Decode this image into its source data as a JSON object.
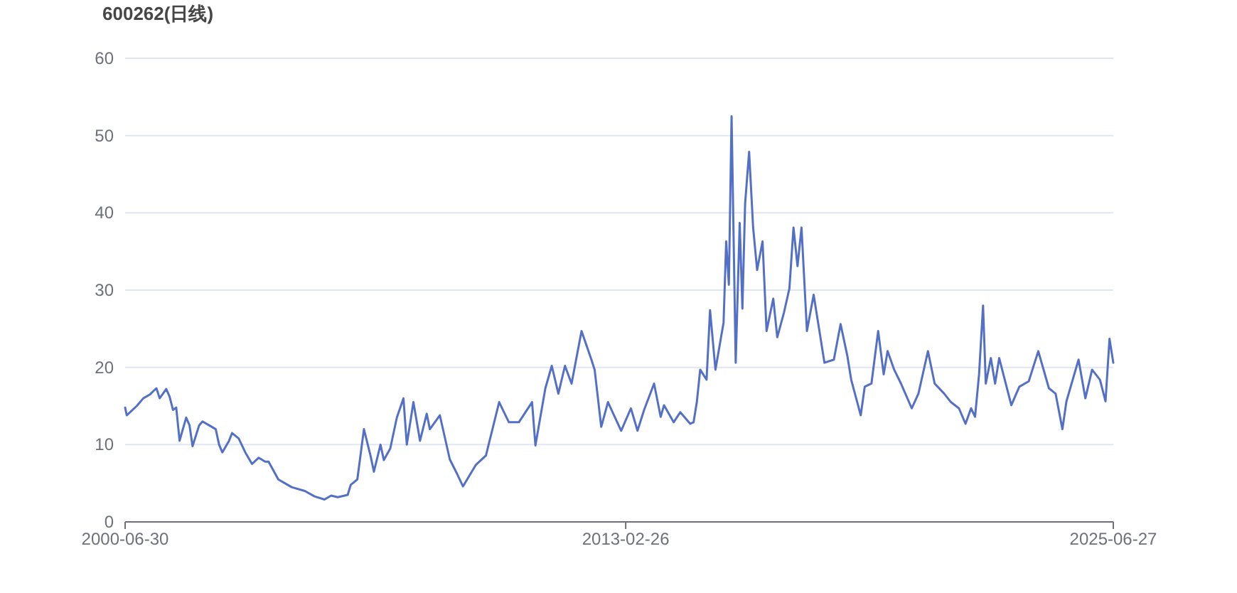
{
  "chart_data": {
    "type": "line",
    "title": "600262(日线)",
    "x": [
      "2000-06-30",
      "2000-07-15",
      "2000-10-15",
      "2000-12-15",
      "2001-02-15",
      "2001-04-15",
      "2001-05-15",
      "2001-07-15",
      "2001-08-15",
      "2001-09-15",
      "2001-10-15",
      "2001-11-15",
      "2002-01-15",
      "2002-02-15",
      "2002-03-15",
      "2002-05-15",
      "2002-06-15",
      "2002-08-15",
      "2002-10-15",
      "2002-11-15",
      "2002-12-15",
      "2003-02-15",
      "2003-03-15",
      "2003-05-15",
      "2003-07-15",
      "2003-09-15",
      "2003-11-15",
      "2004-01-15",
      "2004-02-15",
      "2004-05-15",
      "2004-07-15",
      "2004-09-15",
      "2005-01-15",
      "2005-04-15",
      "2005-07-15",
      "2005-09-15",
      "2005-11-15",
      "2006-02-15",
      "2006-03-15",
      "2006-05-15",
      "2006-07-15",
      "2006-09-15",
      "2006-10-15",
      "2006-12-15",
      "2007-01-15",
      "2007-03-15",
      "2007-05-15",
      "2007-07-15",
      "2007-08-15",
      "2007-10-15",
      "2007-12-15",
      "2008-02-15",
      "2008-03-15",
      "2008-06-15",
      "2008-09-15",
      "2008-11-15",
      "2009-01-15",
      "2009-05-15",
      "2009-08-15",
      "2009-12-15",
      "2010-03-15",
      "2010-06-15",
      "2010-10-15",
      "2010-11-15",
      "2011-02-15",
      "2011-04-15",
      "2011-06-15",
      "2011-08-15",
      "2011-10-15",
      "2012-01-15",
      "2012-04-15",
      "2012-05-15",
      "2012-07-15",
      "2012-09-15",
      "2013-01-15",
      "2013-04-15",
      "2013-06-15",
      "2013-08-15",
      "2013-11-15",
      "2014-01-15",
      "2014-02-15",
      "2014-05-15",
      "2014-07-15",
      "2014-10-15",
      "2014-11-15",
      "2014-12-15",
      "2015-01-15",
      "2015-03-15",
      "2015-04-16",
      "2015-06-05",
      "2015-08-19",
      "2015-09-12",
      "2015-10-07",
      "2015-11-01",
      "2015-12-09",
      "2016-01-15",
      "2016-02-09",
      "2016-03-05",
      "2016-04-11",
      "2016-05-18",
      "2016-06-24",
      "2016-08-13",
      "2016-09-19",
      "2016-11-20",
      "2016-12-27",
      "2017-02-27",
      "2017-04-18",
      "2017-05-26",
      "2017-07-02",
      "2017-08-08",
      "2017-09-27",
      "2017-11-28",
      "2018-03-08",
      "2018-06-03",
      "2018-08-04",
      "2018-10-05",
      "2018-11-10",
      "2019-02-06",
      "2019-03-15",
      "2019-05-16",
      "2019-07-17",
      "2019-09-06",
      "2019-10-12",
      "2019-12-12",
      "2020-02-13",
      "2020-05-22",
      "2020-07-23",
      "2020-10-19",
      "2020-12-20",
      "2021-03-18",
      "2021-05-19",
      "2021-08-01",
      "2021-10-01",
      "2021-11-21",
      "2021-12-28",
      "2022-02-03",
      "2022-03-12",
      "2022-04-06",
      "2022-05-23",
      "2022-07-01",
      "2022-08-08",
      "2022-11-28",
      "2023-02-10",
      "2023-05-08",
      "2023-08-04",
      "2023-11-10",
      "2024-01-11",
      "2024-03-14",
      "2024-04-20",
      "2024-08-10",
      "2024-10-12",
      "2024-12-13",
      "2025-02-24",
      "2025-04-16",
      "2025-05-23",
      "2025-06-27"
    ],
    "series": [
      {
        "color": "#5470c6",
        "values": [
          14.8,
          13.8,
          15.0,
          16.0,
          16.5,
          17.3,
          16.0,
          17.2,
          16.2,
          14.5,
          14.8,
          10.5,
          13.5,
          12.5,
          9.8,
          12.5,
          13.0,
          12.5,
          12.0,
          10.0,
          9.0,
          10.5,
          11.5,
          10.8,
          9.0,
          7.5,
          8.3,
          7.8,
          7.8,
          5.5,
          5.0,
          4.5,
          4.0,
          3.3,
          2.9,
          3.4,
          3.2,
          3.5,
          4.8,
          5.5,
          12.0,
          8.5,
          6.5,
          10.0,
          8.0,
          9.5,
          13.5,
          16.0,
          10.0,
          15.5,
          10.5,
          14.0,
          12.0,
          13.8,
          8.1,
          6.4,
          4.6,
          7.4,
          8.6,
          15.5,
          12.9,
          12.9,
          15.5,
          9.9,
          17.3,
          20.2,
          16.6,
          20.2,
          17.9,
          24.7,
          21.0,
          19.7,
          12.3,
          15.5,
          11.8,
          14.7,
          11.8,
          14.5,
          17.9,
          13.6,
          15.1,
          12.9,
          14.2,
          12.7,
          12.9,
          15.5,
          19.7,
          18.4,
          27.4,
          19.7,
          25.8,
          36.3,
          30.7,
          52.5,
          20.6,
          38.7,
          27.6,
          41.2,
          47.9,
          38.1,
          32.6,
          36.3,
          24.7,
          28.9,
          23.9,
          27.1,
          30.2,
          38.1,
          33.1,
          38.1,
          24.7,
          29.4,
          20.6,
          21.0,
          25.6,
          21.5,
          18.4,
          13.8,
          17.5,
          17.9,
          24.7,
          19.1,
          22.1,
          19.7,
          17.9,
          14.7,
          16.6,
          22.1,
          17.9,
          16.6,
          15.5,
          14.7,
          12.7,
          14.7,
          13.6,
          19.1,
          28.0,
          17.9,
          21.2,
          17.9,
          21.2,
          15.1,
          17.5,
          18.2,
          22.1,
          17.3,
          16.6,
          12.0,
          15.6,
          21.0,
          16.0,
          19.7,
          18.4,
          15.6,
          23.7,
          20.6
        ]
      }
    ],
    "xlim": [
      "2000-06-30",
      "2025-06-27"
    ],
    "xticks": [
      "2000-06-30",
      "2013-02-26",
      "2025-06-27"
    ],
    "ylim": [
      0,
      60
    ],
    "yticks": [
      0,
      10,
      20,
      30,
      40,
      50,
      60
    ],
    "grid": "y"
  }
}
